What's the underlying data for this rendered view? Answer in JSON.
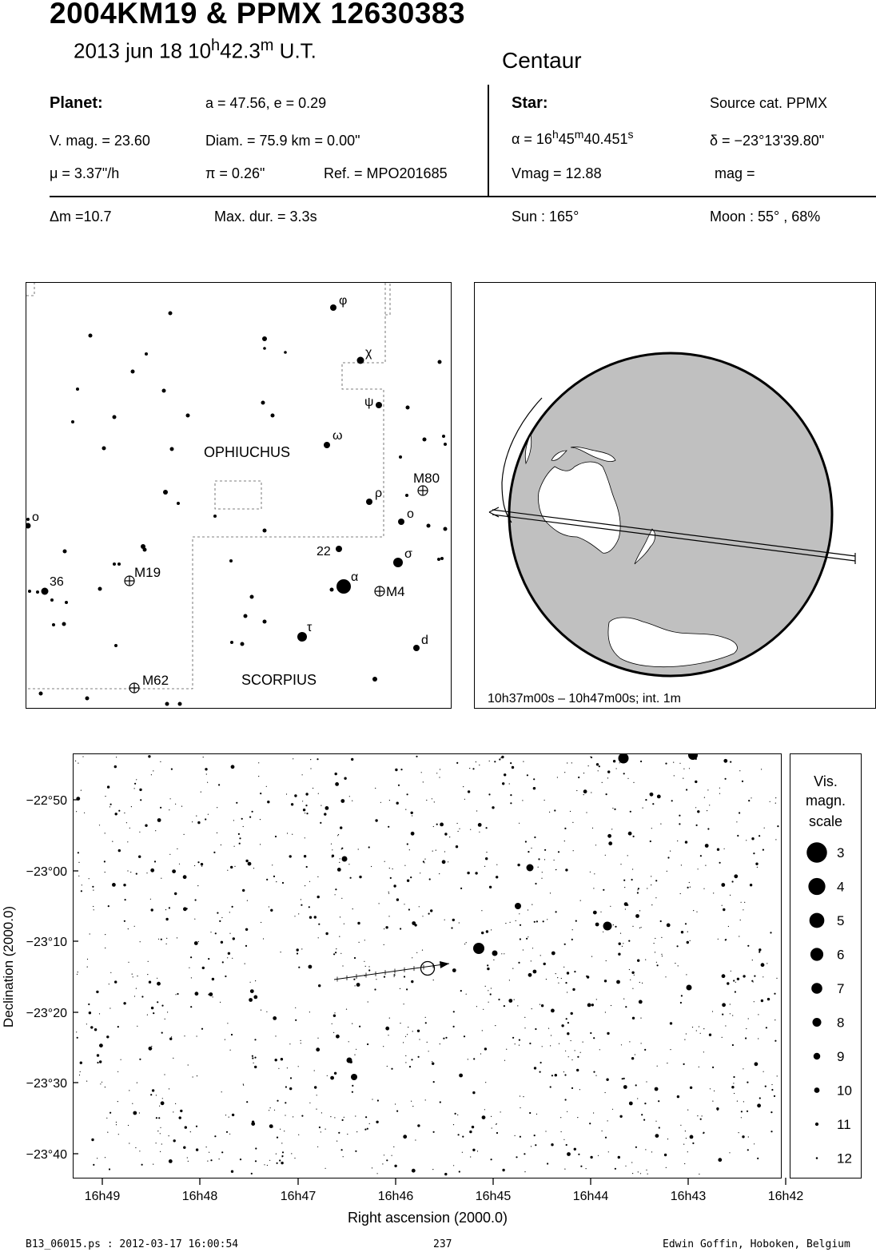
{
  "header": {
    "title": "2004KM19  &  PPMX 12630383",
    "date": "2013 jun 18  10",
    "hour_unit": "h",
    "minutes": "42.3",
    "min_unit": "m",
    "time_suffix": " U.T.",
    "constellation": "Centaur"
  },
  "planet": {
    "heading": "Planet:",
    "orbit": "a = 47.56, e = 0.29",
    "vmag": "V. mag. = 23.60",
    "diam": "Diam. = 75.9 km = 0.00\"",
    "mu": "μ =  3.37\"/h",
    "pi": "π =  0.26\"",
    "ref": "Ref. = MPO201685"
  },
  "star": {
    "heading": "Star:",
    "source": "Source cat.  PPMX",
    "alpha_prefix": "α = 16",
    "alpha_h": "h",
    "alpha_m_val": "45",
    "alpha_m": "m",
    "alpha_s_val": "40.451",
    "alpha_s": "s",
    "delta": "δ = −23°13'39.80\"",
    "vmag": "Vmag = 12.88",
    "mag": "mag ="
  },
  "event": {
    "dm": "Δm =10.7",
    "maxdur": "Max. dur. = 3.3s",
    "sun": "Sun : 165°",
    "moon": "Moon :  55° , 68%"
  },
  "finder": {
    "constellations": [
      "OPHIUCHUS",
      "SCORPIUS"
    ],
    "stars": [
      "φ",
      "χ",
      "ψ",
      "ω",
      "ρ",
      "o",
      "σ",
      "α",
      "τ",
      "d",
      "22",
      "36",
      "o"
    ],
    "clusters": [
      "M80",
      "M19",
      "M4",
      "M62"
    ]
  },
  "globe": {
    "caption": "10h37m00s – 10h47m00s; int.  1m",
    "colors": {
      "land": "#ffffff",
      "ocean": "#c0c0c0"
    }
  },
  "starchart": {
    "y_ticks": [
      "−22°50",
      "−23°00",
      "−23°10",
      "−23°20",
      "−23°30",
      "−23°40"
    ],
    "x_ticks": [
      "16h49",
      "16h48",
      "16h47",
      "16h46",
      "16h45",
      "16h44",
      "16h43",
      "16h42"
    ],
    "ylabel": "Declination (2000.0)",
    "xlabel": "Right ascension (2000.0)",
    "legend_title": [
      "Vis.",
      "magn.",
      "scale"
    ],
    "legend_mags": [
      "3",
      "4",
      "5",
      "6",
      "7",
      "8",
      "9",
      "10",
      "11",
      "12"
    ]
  },
  "footer": {
    "left": "B13_06015.ps : 2012-03-17 16:00:54",
    "center": "237",
    "right": "Edwin Goffin, Hoboken, Belgium"
  }
}
